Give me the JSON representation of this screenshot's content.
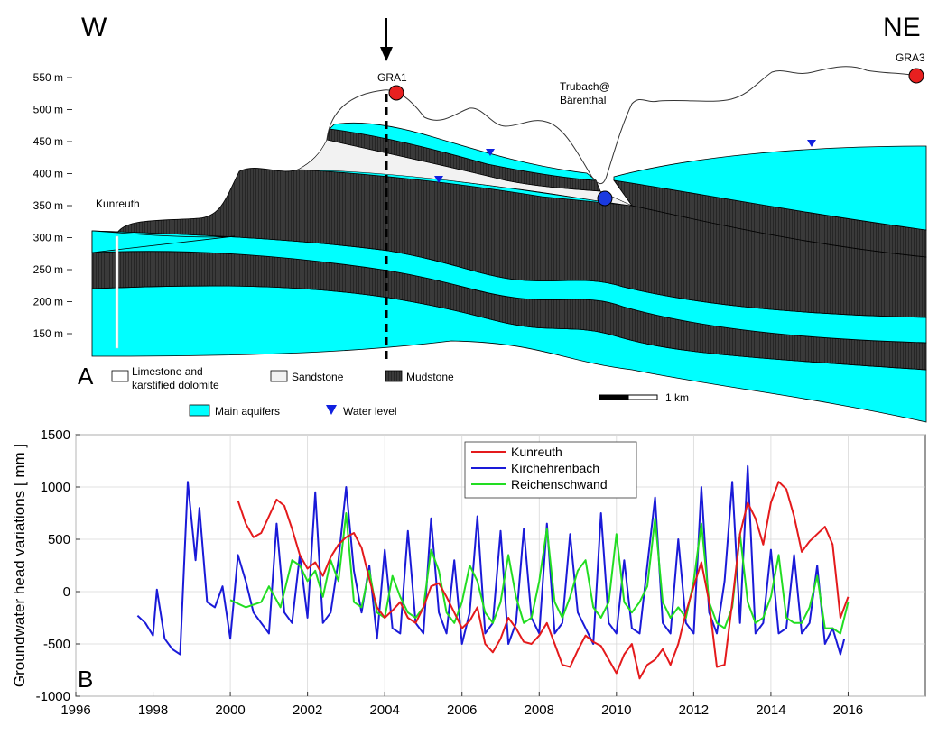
{
  "section": {
    "panel_label": "A",
    "dir_left": "W",
    "dir_right": "NE",
    "elev_ticks": [
      "550 m",
      "500 m",
      "450 m",
      "400 m",
      "350 m",
      "300 m",
      "250 m",
      "200 m",
      "150 m"
    ],
    "elev_values": [
      550,
      500,
      450,
      400,
      350,
      300,
      250,
      200,
      150
    ],
    "labels": {
      "gra1": "GRA1",
      "gra3": "GRA3",
      "trubach_1": "Trubach@",
      "trubach_2": "Bärenthal",
      "kunreuth": "Kunreuth"
    },
    "legend": {
      "limestone_1": "Limestone and",
      "limestone_2": "karstified dolomite",
      "sandstone": "Sandstone",
      "mudstone": "Mudstone",
      "aquifers": "Main aquifers",
      "water_level": "Water level",
      "scale": "1 km"
    },
    "colors": {
      "aquifer": "#00ffff",
      "mudstone": "#3a3a3a",
      "sandstone": "#f2f2f2",
      "water_marker": "#1020e0",
      "station_red": "#e82020",
      "station_blue": "#1a3ae0"
    }
  },
  "chart_data": {
    "type": "line",
    "panel_label": "B",
    "title": "",
    "xlabel": "",
    "ylabel": "Groundwater head variations [ mm ]",
    "xlim": [
      1996,
      2018
    ],
    "ylim": [
      -1000,
      1500
    ],
    "xticks": [
      1996,
      1998,
      2000,
      2002,
      2004,
      2006,
      2008,
      2010,
      2012,
      2014,
      2016
    ],
    "yticks": [
      -1000,
      -500,
      0,
      500,
      1000,
      1500
    ],
    "grid": true,
    "legend_position": "top-center",
    "series": [
      {
        "name": "Kunreuth",
        "color": "#e41a1c",
        "x": [
          2000.2,
          2000.4,
          2000.6,
          2000.8,
          2001.0,
          2001.2,
          2001.4,
          2001.6,
          2001.8,
          2002.0,
          2002.2,
          2002.4,
          2002.6,
          2002.8,
          2003.0,
          2003.2,
          2003.4,
          2003.6,
          2003.8,
          2004.0,
          2004.2,
          2004.4,
          2004.6,
          2004.8,
          2005.0,
          2005.2,
          2005.4,
          2005.6,
          2005.8,
          2006.0,
          2006.2,
          2006.4,
          2006.6,
          2006.8,
          2007.0,
          2007.2,
          2007.4,
          2007.6,
          2007.8,
          2008.0,
          2008.2,
          2008.4,
          2008.6,
          2008.8,
          2009.0,
          2009.2,
          2009.4,
          2009.6,
          2009.8,
          2010.0,
          2010.2,
          2010.4,
          2010.6,
          2010.8,
          2011.0,
          2011.2,
          2011.4,
          2011.6,
          2011.8,
          2012.0,
          2012.2,
          2012.4,
          2012.6,
          2012.8,
          2013.0,
          2013.2,
          2013.4,
          2013.6,
          2013.8,
          2014.0,
          2014.2,
          2014.4,
          2014.6,
          2014.8,
          2015.0,
          2015.2,
          2015.4,
          2015.6,
          2015.8,
          2016.0
        ],
        "values": [
          870,
          650,
          520,
          560,
          720,
          880,
          820,
          600,
          350,
          220,
          280,
          150,
          330,
          450,
          520,
          560,
          420,
          120,
          -150,
          -250,
          -180,
          -100,
          -250,
          -300,
          -150,
          50,
          80,
          -50,
          -200,
          -350,
          -280,
          -150,
          -500,
          -580,
          -450,
          -250,
          -350,
          -480,
          -500,
          -420,
          -300,
          -500,
          -700,
          -720,
          -560,
          -420,
          -480,
          -520,
          -650,
          -780,
          -600,
          -500,
          -830,
          -700,
          -650,
          -550,
          -700,
          -500,
          -200,
          50,
          280,
          -100,
          -720,
          -700,
          -100,
          550,
          850,
          700,
          450,
          850,
          1050,
          980,
          720,
          380,
          480,
          550,
          620,
          450,
          -250,
          -50
        ],
        "linewidth": 2
      },
      {
        "name": "Kirchehrenbach",
        "color": "#1a1ad8",
        "x": [
          1997.6,
          1997.8,
          1998.0,
          1998.1,
          1998.3,
          1998.5,
          1998.7,
          1998.9,
          1999.1,
          1999.2,
          1999.4,
          1999.6,
          1999.8,
          2000.0,
          2000.2,
          2000.4,
          2000.6,
          2000.8,
          2001.0,
          2001.2,
          2001.4,
          2001.6,
          2001.8,
          2002.0,
          2002.2,
          2002.4,
          2002.6,
          2002.8,
          2003.0,
          2003.2,
          2003.4,
          2003.6,
          2003.8,
          2004.0,
          2004.2,
          2004.4,
          2004.6,
          2004.8,
          2005.0,
          2005.2,
          2005.4,
          2005.6,
          2005.8,
          2006.0,
          2006.2,
          2006.4,
          2006.6,
          2006.8,
          2007.0,
          2007.2,
          2007.4,
          2007.6,
          2007.8,
          2008.0,
          2008.2,
          2008.4,
          2008.6,
          2008.8,
          2009.0,
          2009.2,
          2009.4,
          2009.6,
          2009.8,
          2010.0,
          2010.2,
          2010.4,
          2010.6,
          2010.8,
          2011.0,
          2011.2,
          2011.4,
          2011.6,
          2011.8,
          2012.0,
          2012.2,
          2012.4,
          2012.6,
          2012.8,
          2013.0,
          2013.2,
          2013.4,
          2013.6,
          2013.8,
          2014.0,
          2014.2,
          2014.4,
          2014.6,
          2014.8,
          2015.0,
          2015.2,
          2015.4,
          2015.6,
          2015.8,
          2015.9
        ],
        "values": [
          -230,
          -300,
          -420,
          20,
          -450,
          -550,
          -600,
          1050,
          300,
          800,
          -100,
          -150,
          50,
          -450,
          350,
          100,
          -200,
          -300,
          -400,
          650,
          -200,
          -300,
          350,
          -250,
          950,
          -300,
          -200,
          300,
          1000,
          200,
          -200,
          250,
          -450,
          400,
          -350,
          -400,
          580,
          -300,
          -400,
          700,
          -200,
          -400,
          300,
          -500,
          -200,
          720,
          -400,
          -300,
          580,
          -500,
          -300,
          600,
          -250,
          -400,
          650,
          -400,
          -300,
          550,
          -200,
          -350,
          -500,
          750,
          -300,
          -400,
          300,
          -350,
          -400,
          250,
          900,
          -300,
          -400,
          500,
          -300,
          -400,
          1000,
          -200,
          -400,
          100,
          1050,
          -300,
          1200,
          -400,
          -300,
          400,
          -400,
          -350,
          350,
          -400,
          -300,
          250,
          -500,
          -350,
          -600,
          -450
        ],
        "linewidth": 2
      },
      {
        "name": "Reichenschwand",
        "color": "#22dd22",
        "x": [
          2000.0,
          2000.4,
          2000.8,
          2001.0,
          2001.3,
          2001.6,
          2001.8,
          2002.0,
          2002.2,
          2002.4,
          2002.6,
          2002.8,
          2003.0,
          2003.2,
          2003.4,
          2003.6,
          2003.8,
          2004.0,
          2004.2,
          2004.4,
          2004.6,
          2004.8,
          2005.0,
          2005.2,
          2005.4,
          2005.6,
          2005.8,
          2006.0,
          2006.2,
          2006.4,
          2006.6,
          2006.8,
          2007.0,
          2007.2,
          2007.4,
          2007.6,
          2007.8,
          2008.0,
          2008.2,
          2008.4,
          2008.6,
          2008.8,
          2009.0,
          2009.2,
          2009.4,
          2009.6,
          2009.8,
          2010.0,
          2010.2,
          2010.4,
          2010.6,
          2010.8,
          2011.0,
          2011.2,
          2011.4,
          2011.6,
          2011.8,
          2012.0,
          2012.2,
          2012.4,
          2012.6,
          2012.8,
          2013.0,
          2013.2,
          2013.4,
          2013.6,
          2013.8,
          2014.0,
          2014.2,
          2014.4,
          2014.6,
          2014.8,
          2015.0,
          2015.2,
          2015.4,
          2015.6,
          2015.8,
          2016.0
        ],
        "values": [
          -80,
          -150,
          -100,
          50,
          -150,
          300,
          250,
          100,
          200,
          -50,
          300,
          100,
          750,
          -100,
          -150,
          200,
          -200,
          -250,
          150,
          -50,
          -200,
          -250,
          -150,
          400,
          200,
          -200,
          -300,
          -100,
          250,
          100,
          -200,
          -300,
          -100,
          350,
          -50,
          -300,
          -250,
          100,
          600,
          -100,
          -250,
          -50,
          200,
          300,
          -150,
          -250,
          -100,
          550,
          -100,
          -200,
          -100,
          50,
          700,
          -100,
          -250,
          -150,
          -250,
          100,
          650,
          -100,
          -300,
          -350,
          -150,
          550,
          -100,
          -300,
          -250,
          -50,
          350,
          -250,
          -300,
          -300,
          -150,
          150,
          -350,
          -350,
          -400,
          -100
        ],
        "linewidth": 2
      }
    ]
  }
}
